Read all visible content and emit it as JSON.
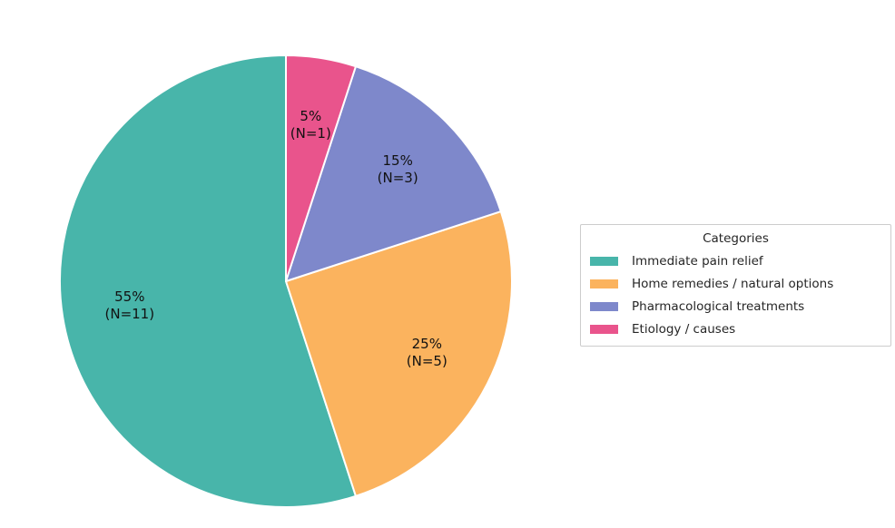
{
  "chart_data": {
    "type": "pie",
    "background": "#ffffff",
    "start_angle": 90,
    "direction": "counterclockwise",
    "legend": {
      "title": "Categories",
      "position": "center right"
    },
    "slices": [
      {
        "label": "Immediate pain relief",
        "value": 11,
        "percent": 55,
        "pct_label": "55%",
        "n_label": "(N=11)",
        "color": "#48B5AA"
      },
      {
        "label": "Home remedies / natural options",
        "value": 5,
        "percent": 25,
        "pct_label": "25%",
        "n_label": "(N=5)",
        "color": "#FBB35E"
      },
      {
        "label": "Pharmacological treatments",
        "value": 3,
        "percent": 15,
        "pct_label": "15%",
        "n_label": "(N=3)",
        "color": "#7E88CB"
      },
      {
        "label": "Etiology / causes",
        "value": 1,
        "percent": 5,
        "pct_label": "5%",
        "n_label": "(N=1)",
        "color": "#E9548C"
      }
    ]
  }
}
